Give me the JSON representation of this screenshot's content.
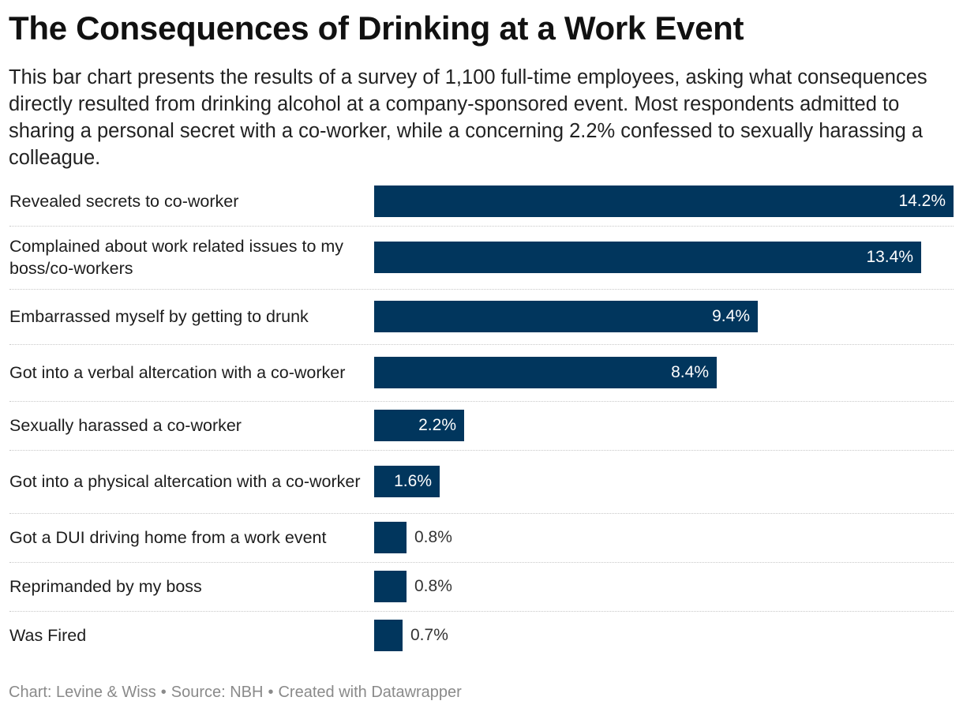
{
  "header": {
    "title": "The Consequences of Drinking at a Work Event",
    "description": "This bar chart presents the results of a survey of 1,100 full-time employees, asking what consequences directly resulted from drinking alcohol at a company-sponsored event. Most respondents admitted to sharing a personal secret with a co-worker, while a concerning 2.2% confessed to sexually harassing a colleague."
  },
  "colors": {
    "bar": "#01365d",
    "value_inside": "#ffffff",
    "value_outside": "#333333"
  },
  "chart_data": {
    "type": "bar",
    "orientation": "horizontal",
    "title": "The Consequences of Drinking at a Work Event",
    "xlabel": "",
    "ylabel": "",
    "xlim": [
      0,
      14.2
    ],
    "unit": "%",
    "categories": [
      "Revealed secrets to co-worker",
      "Complained about work related issues to my boss/co-workers",
      "Embarrassed myself by getting to drunk",
      "Got into a verbal altercation with a co-worker",
      "Sexually harassed a co-worker",
      "Got into a physical altercation with a co-worker",
      "Got a DUI driving home from a work event",
      "Reprimanded by my boss",
      "Was Fired"
    ],
    "values": [
      14.2,
      13.4,
      9.4,
      8.4,
      2.2,
      1.6,
      0.8,
      0.8,
      0.7
    ],
    "value_labels": [
      "14.2%",
      "13.4%",
      "9.4%",
      "8.4%",
      "2.2%",
      "1.6%",
      "0.8%",
      "0.8%",
      "0.7%"
    ],
    "grid": false,
    "legend": "none"
  },
  "footer": {
    "chart_credit": "Chart: Levine & Wiss",
    "source": "Source: NBH",
    "created_with": "Created with Datawrapper"
  }
}
